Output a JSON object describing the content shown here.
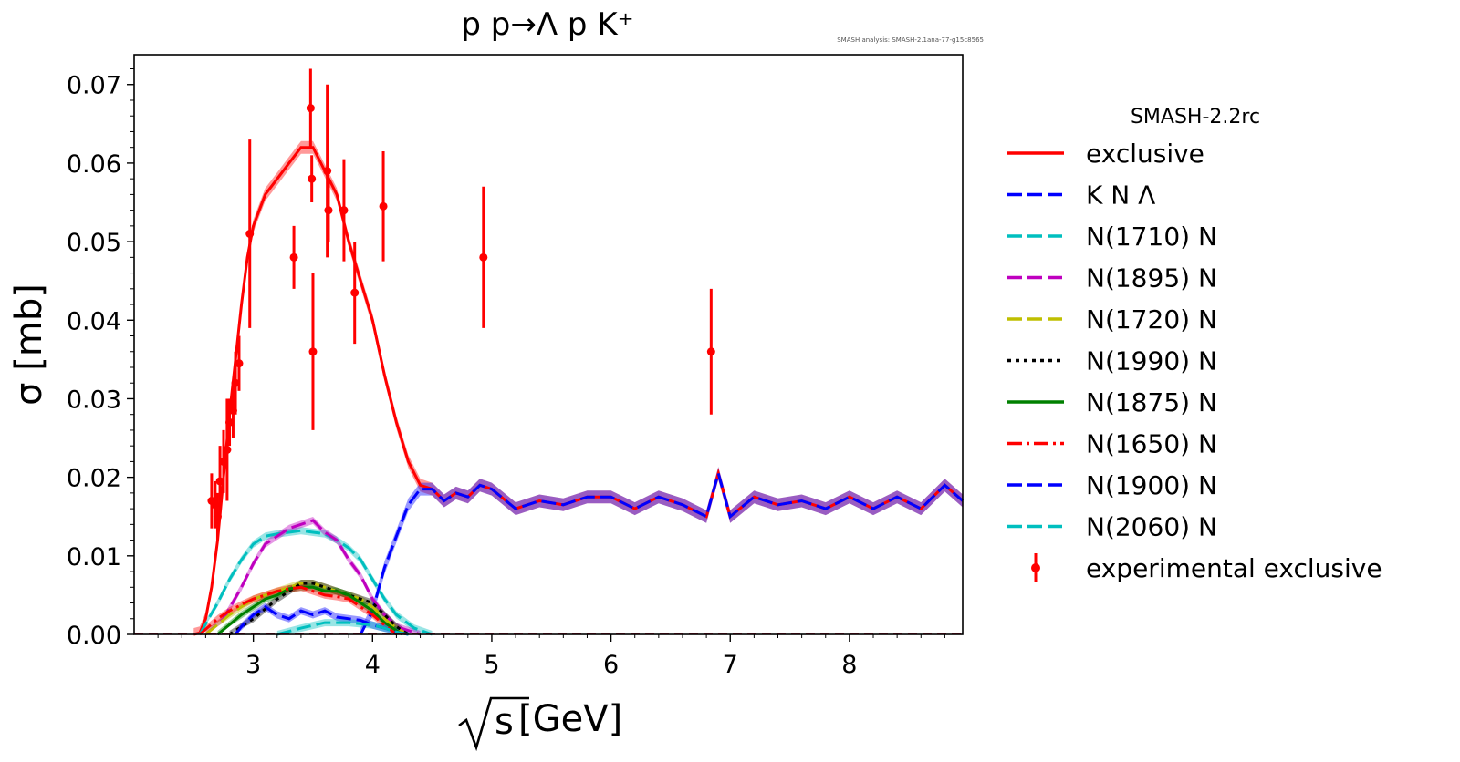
{
  "chart_data": {
    "type": "line",
    "title": "p p→Λ p K⁺",
    "watermark": "SMASH analysis: SMASH-2.1ana-77-g15c8565",
    "xlabel": "√s [GeV]",
    "xlabel_radicand": "s",
    "xlabel_unit": "[GeV]",
    "ylabel": "σ [mb]",
    "xlim": [
      2.0,
      8.95
    ],
    "ylim": [
      0.0,
      0.0738
    ],
    "xticks": [
      3,
      4,
      5,
      6,
      7,
      8
    ],
    "yticks": [
      0.0,
      0.01,
      0.02,
      0.03,
      0.04,
      0.05,
      0.06,
      0.07
    ],
    "ytick_labels": [
      "0.00",
      "0.01",
      "0.02",
      "0.03",
      "0.04",
      "0.05",
      "0.06",
      "0.07"
    ],
    "grid": false,
    "legend": {
      "title": "SMASH-2.2rc",
      "placement": "outside-right",
      "entries": [
        {
          "label": "exclusive",
          "color": "#ff0000",
          "style": "solid"
        },
        {
          "label": "K N Λ",
          "color": "#0000ff",
          "style": "dashed"
        },
        {
          "label": "N(1710) N",
          "color": "#00bfbf",
          "style": "dashed"
        },
        {
          "label": "N(1895) N",
          "color": "#bf00bf",
          "style": "dashed"
        },
        {
          "label": "N(1720) N",
          "color": "#bfbf00",
          "style": "dashed"
        },
        {
          "label": "N(1990) N",
          "color": "#000000",
          "style": "dotted"
        },
        {
          "label": "N(1875) N",
          "color": "#008000",
          "style": "solid"
        },
        {
          "label": "N(1650) N",
          "color": "#ff0000",
          "style": "dashdot"
        },
        {
          "label": "N(1900) N",
          "color": "#0000ff",
          "style": "dashed"
        },
        {
          "label": "N(2060) N",
          "color": "#00bfbf",
          "style": "dashed"
        },
        {
          "label": "experimental exclusive",
          "color": "#ff0000",
          "style": "errorbar"
        }
      ]
    },
    "series": [
      {
        "name": "exclusive",
        "color": "#ff0000",
        "x": [
          2.5,
          2.55,
          2.6,
          2.65,
          2.7,
          2.75,
          2.8,
          2.85,
          2.9,
          2.95,
          3.0,
          3.1,
          3.2,
          3.3,
          3.4,
          3.5,
          3.6,
          3.7,
          3.8,
          3.9,
          4.0,
          4.1,
          4.2,
          4.3,
          4.4,
          4.5,
          4.6,
          4.7,
          4.8,
          4.9,
          5.0,
          5.2,
          5.4,
          5.6,
          5.8,
          6.0,
          6.2,
          6.4,
          6.6,
          6.8,
          6.9,
          7.0,
          7.2,
          7.4,
          7.6,
          7.8,
          8.0,
          8.2,
          8.4,
          8.6,
          8.8,
          8.95
        ],
        "y": [
          0.0,
          0.0002,
          0.002,
          0.006,
          0.012,
          0.02,
          0.028,
          0.035,
          0.042,
          0.048,
          0.052,
          0.056,
          0.058,
          0.06,
          0.062,
          0.062,
          0.059,
          0.056,
          0.05,
          0.045,
          0.04,
          0.033,
          0.027,
          0.022,
          0.019,
          0.0185,
          0.017,
          0.018,
          0.0175,
          0.019,
          0.0185,
          0.016,
          0.017,
          0.0165,
          0.0175,
          0.0175,
          0.016,
          0.0175,
          0.0165,
          0.015,
          0.0205,
          0.015,
          0.0175,
          0.0165,
          0.017,
          0.016,
          0.0175,
          0.016,
          0.0175,
          0.016,
          0.019,
          0.017
        ]
      },
      {
        "name": "K N Λ",
        "color": "#0000ff",
        "x": [
          3.9,
          4.0,
          4.1,
          4.2,
          4.3,
          4.4,
          4.5,
          4.6,
          4.7,
          4.8,
          4.9,
          5.0,
          5.2,
          5.4,
          5.6,
          5.8,
          6.0,
          6.2,
          6.4,
          6.6,
          6.8,
          6.9,
          7.0,
          7.2,
          7.4,
          7.6,
          7.8,
          8.0,
          8.2,
          8.4,
          8.6,
          8.8,
          8.95
        ],
        "y": [
          0.0,
          0.003,
          0.0085,
          0.0125,
          0.0165,
          0.0185,
          0.0185,
          0.017,
          0.018,
          0.0175,
          0.019,
          0.0185,
          0.016,
          0.017,
          0.0165,
          0.0175,
          0.0175,
          0.016,
          0.0175,
          0.0165,
          0.015,
          0.0205,
          0.015,
          0.0175,
          0.0165,
          0.017,
          0.016,
          0.0175,
          0.016,
          0.0175,
          0.016,
          0.019,
          0.017
        ]
      },
      {
        "name": "N(1710) N",
        "color": "#00bfbf",
        "x": [
          2.55,
          2.7,
          2.8,
          2.9,
          3.0,
          3.1,
          3.2,
          3.3,
          3.4,
          3.5,
          3.6,
          3.7,
          3.8,
          3.9,
          4.0,
          4.1,
          4.2,
          4.35,
          4.5
        ],
        "y": [
          0.0,
          0.004,
          0.007,
          0.0095,
          0.0115,
          0.0125,
          0.0128,
          0.013,
          0.0132,
          0.013,
          0.0128,
          0.012,
          0.011,
          0.0095,
          0.007,
          0.0045,
          0.0025,
          0.0008,
          0.0
        ]
      },
      {
        "name": "N(1895) N",
        "color": "#bf00bf",
        "x": [
          2.6,
          2.75,
          2.9,
          3.0,
          3.1,
          3.2,
          3.3,
          3.4,
          3.5,
          3.6,
          3.7,
          3.8,
          3.9,
          4.0,
          4.1,
          4.2,
          4.4
        ],
        "y": [
          0.0,
          0.002,
          0.006,
          0.009,
          0.0115,
          0.0125,
          0.0135,
          0.014,
          0.0145,
          0.013,
          0.012,
          0.0095,
          0.0075,
          0.0045,
          0.0025,
          0.001,
          0.0
        ]
      },
      {
        "name": "N(1720) N",
        "color": "#bfbf00",
        "x": [
          2.6,
          2.8,
          3.0,
          3.2,
          3.3,
          3.4,
          3.5,
          3.6,
          3.7,
          3.8,
          3.9,
          4.0,
          4.1,
          4.2,
          4.3
        ],
        "y": [
          0.0,
          0.0025,
          0.0045,
          0.0055,
          0.006,
          0.0065,
          0.0065,
          0.006,
          0.0055,
          0.005,
          0.0045,
          0.0035,
          0.002,
          0.0008,
          0.0
        ]
      },
      {
        "name": "N(1990) N",
        "color": "#000000",
        "x": [
          2.8,
          3.0,
          3.2,
          3.3,
          3.4,
          3.5,
          3.6,
          3.7,
          3.8,
          3.9,
          4.0,
          4.1,
          4.2,
          4.3
        ],
        "y": [
          0.0,
          0.002,
          0.0045,
          0.0055,
          0.0065,
          0.0065,
          0.006,
          0.0055,
          0.005,
          0.0045,
          0.004,
          0.0025,
          0.001,
          0.0
        ]
      },
      {
        "name": "N(1875) N",
        "color": "#008000",
        "x": [
          2.7,
          2.9,
          3.1,
          3.2,
          3.3,
          3.4,
          3.5,
          3.6,
          3.7,
          3.8,
          3.9,
          4.0,
          4.1,
          4.25
        ],
        "y": [
          0.0,
          0.0025,
          0.0045,
          0.005,
          0.0058,
          0.006,
          0.006,
          0.0055,
          0.0055,
          0.005,
          0.004,
          0.003,
          0.0015,
          0.0
        ]
      },
      {
        "name": "N(1650) N",
        "color": "#ff0000",
        "x": [
          2.55,
          2.7,
          2.8,
          2.9,
          3.0,
          3.1,
          3.2,
          3.3,
          3.4,
          3.5,
          3.6,
          3.7,
          3.8,
          3.9,
          4.0,
          4.1,
          4.2
        ],
        "y": [
          0.0,
          0.002,
          0.003,
          0.0038,
          0.0045,
          0.005,
          0.0055,
          0.0058,
          0.006,
          0.0055,
          0.005,
          0.0048,
          0.0045,
          0.0035,
          0.0025,
          0.0012,
          0.0
        ]
      },
      {
        "name": "N(1900) N",
        "color": "#0000ff",
        "x": [
          2.85,
          2.9,
          3.0,
          3.1,
          3.2,
          3.3,
          3.4,
          3.5,
          3.6,
          3.7,
          3.8,
          3.9,
          4.0,
          4.1,
          4.2,
          4.3
        ],
        "y": [
          0.0,
          0.001,
          0.0025,
          0.0035,
          0.0025,
          0.002,
          0.003,
          0.0025,
          0.003,
          0.0022,
          0.002,
          0.0018,
          0.0012,
          0.0008,
          0.0003,
          0.0
        ]
      },
      {
        "name": "N(2060) N",
        "color": "#00bfbf",
        "x": [
          3.2,
          3.4,
          3.6,
          3.8,
          4.0,
          4.1,
          4.2,
          4.3
        ],
        "y": [
          0.0,
          0.0008,
          0.0015,
          0.0015,
          0.0012,
          0.0008,
          0.0003,
          0.0
        ]
      }
    ],
    "experimental": {
      "name": "experimental exclusive",
      "color": "#ff0000",
      "points": [
        {
          "x": 2.65,
          "y": 0.017,
          "err": 0.0035
        },
        {
          "x": 2.68,
          "y": 0.0165,
          "err": 0.003
        },
        {
          "x": 2.7,
          "y": 0.015,
          "err": 0.003
        },
        {
          "x": 2.72,
          "y": 0.0195,
          "err": 0.0045
        },
        {
          "x": 2.75,
          "y": 0.022,
          "err": 0.004
        },
        {
          "x": 2.78,
          "y": 0.0235,
          "err": 0.0065
        },
        {
          "x": 2.8,
          "y": 0.027,
          "err": 0.003
        },
        {
          "x": 2.83,
          "y": 0.0285,
          "err": 0.0035
        },
        {
          "x": 2.85,
          "y": 0.032,
          "err": 0.004
        },
        {
          "x": 2.88,
          "y": 0.0345,
          "err": 0.0035
        },
        {
          "x": 2.97,
          "y": 0.051,
          "err": 0.012
        },
        {
          "x": 3.34,
          "y": 0.048,
          "err": 0.004
        },
        {
          "x": 3.48,
          "y": 0.067,
          "err": 0.005
        },
        {
          "x": 3.49,
          "y": 0.058,
          "err": 0.003
        },
        {
          "x": 3.5,
          "y": 0.036,
          "err": 0.01
        },
        {
          "x": 3.62,
          "y": 0.059,
          "err": 0.011
        },
        {
          "x": 3.63,
          "y": 0.054,
          "err": 0.004
        },
        {
          "x": 3.76,
          "y": 0.054,
          "err": 0.0065
        },
        {
          "x": 3.85,
          "y": 0.0435,
          "err": 0.0065
        },
        {
          "x": 4.09,
          "y": 0.0545,
          "err": 0.007
        },
        {
          "x": 4.93,
          "y": 0.048,
          "err": 0.009
        },
        {
          "x": 6.84,
          "y": 0.036,
          "err": 0.008
        }
      ]
    }
  }
}
